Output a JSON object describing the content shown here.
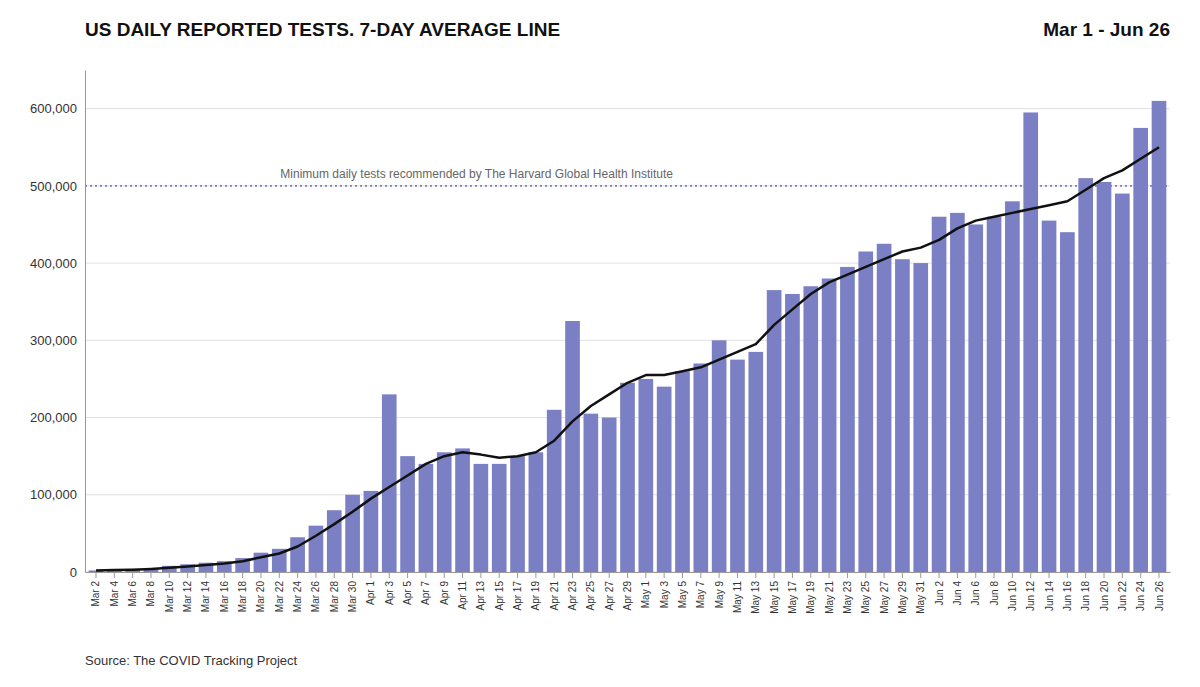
{
  "chart_data": {
    "type": "bar",
    "title": "US DAILY REPORTED TESTS. 7-DAY AVERAGE LINE",
    "subtitle": "Mar 1 - Jun 26",
    "categories": [
      "Mar 2",
      "Mar 4",
      "Mar 6",
      "Mar 8",
      "Mar 10",
      "Mar 12",
      "Mar 14",
      "Mar 16",
      "Mar 18",
      "Mar 20",
      "Mar 22",
      "Mar 24",
      "Mar 26",
      "Mar 28",
      "Mar 30",
      "Apr 1",
      "Apr 3",
      "Apr 5",
      "Apr 7",
      "Apr 9",
      "Apr 11",
      "Apr 13",
      "Apr 15",
      "Apr 17",
      "Apr 19",
      "Apr 21",
      "Apr 23",
      "Apr 25",
      "Apr 27",
      "Apr 29",
      "May 1",
      "May 3",
      "May 5",
      "May 7",
      "May 9",
      "May 11",
      "May 13",
      "May 15",
      "May 17",
      "May 19",
      "May 21",
      "May 23",
      "May 25",
      "May 27",
      "May 29",
      "May 31",
      "Jun 2",
      "Jun 4",
      "Jun 6",
      "Jun 8",
      "Jun 10",
      "Jun 12",
      "Jun 14",
      "Jun 16",
      "Jun 18",
      "Jun 20",
      "Jun 22",
      "Jun 24",
      "Jun 26"
    ],
    "series": [
      {
        "type": "bar",
        "color": "#7b7fc4",
        "values": [
          2000,
          3000,
          4000,
          5000,
          8000,
          10000,
          12000,
          14000,
          18000,
          25000,
          30000,
          45000,
          60000,
          80000,
          100000,
          105000,
          230000,
          150000,
          140000,
          155000,
          160000,
          140000,
          140000,
          150000,
          155000,
          210000,
          325000,
          205000,
          200000,
          245000,
          250000,
          240000,
          260000,
          270000,
          300000,
          275000,
          285000,
          365000,
          360000,
          370000,
          380000,
          395000,
          415000,
          425000,
          405000,
          400000,
          460000,
          465000,
          450000,
          460000,
          480000,
          595000,
          455000,
          440000,
          510000,
          505000,
          490000,
          575000,
          610000
        ]
      },
      {
        "type": "line",
        "color": "#111111",
        "values": [
          2000,
          2500,
          3000,
          4000,
          5500,
          7000,
          9000,
          11000,
          14000,
          19000,
          24000,
          33000,
          47000,
          62000,
          78000,
          95000,
          110000,
          125000,
          140000,
          150000,
          155000,
          152000,
          148000,
          150000,
          155000,
          170000,
          195000,
          215000,
          230000,
          245000,
          255000,
          255000,
          260000,
          265000,
          275000,
          285000,
          295000,
          320000,
          340000,
          360000,
          375000,
          385000,
          395000,
          405000,
          415000,
          420000,
          430000,
          445000,
          455000,
          460000,
          465000,
          470000,
          475000,
          480000,
          495000,
          510000,
          520000,
          535000,
          550000
        ]
      }
    ],
    "annotations": [
      {
        "text": "Minimum daily tests recommended by The Harvard Global Health Institute",
        "y": 500000,
        "color": "#7b7fc4",
        "line_style": "dotted"
      },
      {
        "text": "Source: The COVID Tracking Project"
      }
    ],
    "ylim": [
      0,
      650000
    ],
    "yticks": [
      0,
      {
        "value": 100000,
        "label": "100,000"
      },
      {
        "value": 200000,
        "label": "200,000"
      },
      {
        "value": 300000,
        "label": "300,000"
      },
      {
        "value": 400000,
        "label": "400,000"
      },
      {
        "value": 500000,
        "label": "500,000"
      },
      {
        "value": 600000,
        "label": "600,000"
      }
    ],
    "grid": true
  }
}
